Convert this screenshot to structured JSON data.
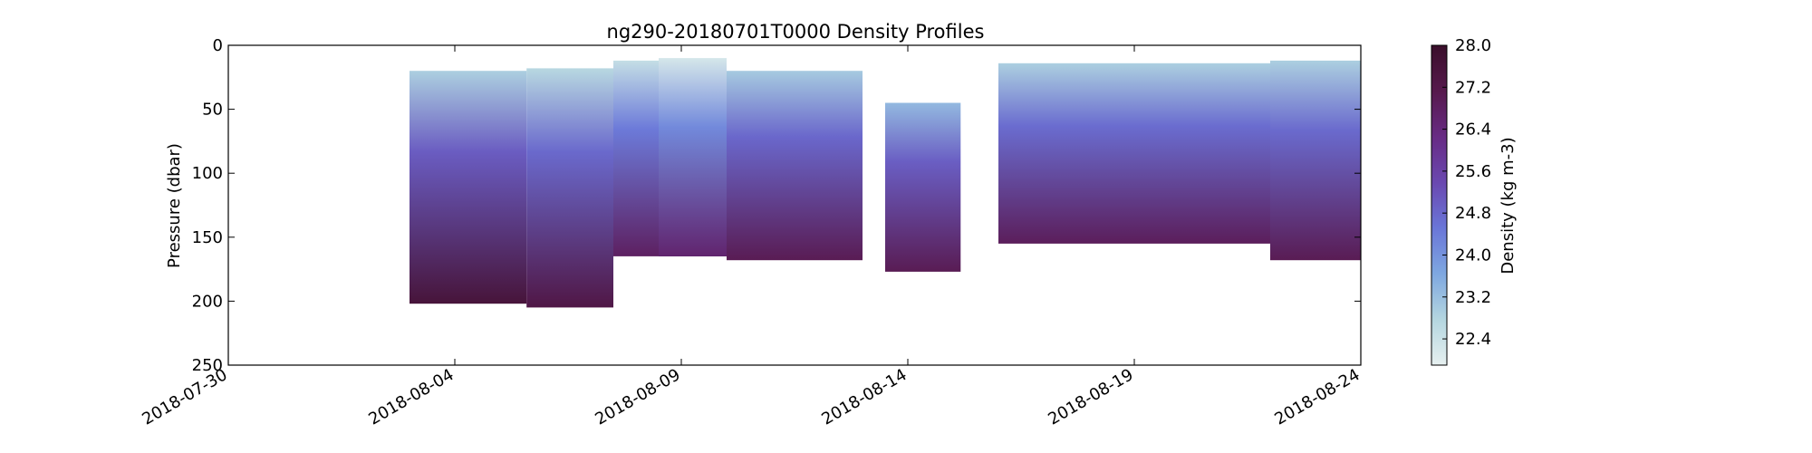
{
  "chart_data": {
    "type": "heatmap",
    "title": "ng290-20180701T0000 Density Profiles",
    "ylabel": "Pressure (dbar)",
    "xlabel": "",
    "xlim": [
      "2018-07-30",
      "2018-08-24"
    ],
    "ylim": [
      250,
      0
    ],
    "y_inverted": true,
    "xticks": [
      "2018-07-30",
      "2018-08-04",
      "2018-08-09",
      "2018-08-14",
      "2018-08-19",
      "2018-08-24"
    ],
    "yticks": [
      0,
      50,
      100,
      150,
      200,
      250
    ],
    "grid": false,
    "colorbar": {
      "label": "Density (kg m-3)",
      "range": [
        21.9,
        28.0
      ],
      "ticks": [
        "22.4",
        "23.2",
        "24.0",
        "24.8",
        "25.6",
        "26.4",
        "27.2",
        "28.0"
      ],
      "colormap": [
        "#e6f0f0",
        "#b4d6e0",
        "#7ea7e0",
        "#6a76d8",
        "#6a48b0",
        "#682b84",
        "#56194c",
        "#3a0f2b"
      ]
    },
    "profile_segments": [
      {
        "start": "2018-08-03T00:00",
        "end": "2018-08-05T14:00",
        "surface_depth": 20,
        "max_depth": 202,
        "surface_density": 22.9,
        "bottom_density": 27.6
      },
      {
        "start": "2018-08-05T14:00",
        "end": "2018-08-07T12:00",
        "surface_depth": 18,
        "max_depth": 205,
        "surface_density": 22.7,
        "bottom_density": 27.3
      },
      {
        "start": "2018-08-07T12:00",
        "end": "2018-08-08T12:00",
        "surface_depth": 12,
        "max_depth": 165,
        "surface_density": 22.5,
        "bottom_density": 26.8
      },
      {
        "start": "2018-08-08T12:00",
        "end": "2018-08-10T00:00",
        "surface_depth": 10,
        "max_depth": 165,
        "surface_density": 22.2,
        "bottom_density": 26.6
      },
      {
        "start": "2018-08-10T00:00",
        "end": "2018-08-13T00:00",
        "surface_depth": 20,
        "max_depth": 168,
        "surface_density": 23.0,
        "bottom_density": 27.0
      },
      {
        "start": "2018-08-13T12:00",
        "end": "2018-08-15T04:00",
        "surface_depth": 45,
        "max_depth": 177,
        "surface_density": 23.3,
        "bottom_density": 27.0
      },
      {
        "start": "2018-08-16T00:00",
        "end": "2018-08-22T00:00",
        "surface_depth": 14,
        "max_depth": 155,
        "surface_density": 22.9,
        "bottom_density": 26.9
      },
      {
        "start": "2018-08-22T00:00",
        "end": "2018-08-24T00:00",
        "surface_depth": 12,
        "max_depth": 168,
        "surface_density": 22.9,
        "bottom_density": 27.0
      }
    ]
  }
}
